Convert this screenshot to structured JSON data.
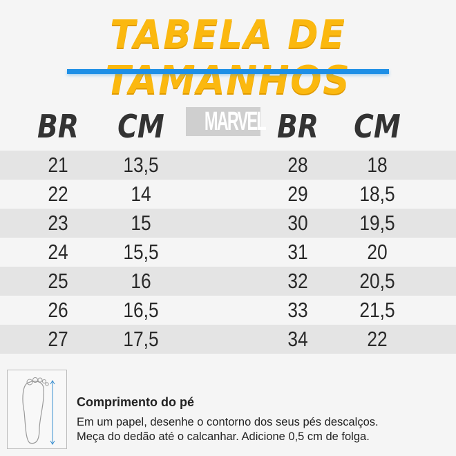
{
  "title": "TABELA DE TAMANHOS",
  "accent_color": "#fbb80f",
  "rule_color": "#1e8fe6",
  "logo": "MARVEL",
  "headers": [
    "BR",
    "CM",
    "BR",
    "CM"
  ],
  "left_rows": [
    [
      "21",
      "13,5"
    ],
    [
      "22",
      "14"
    ],
    [
      "23",
      "15"
    ],
    [
      "24",
      "15,5"
    ],
    [
      "25",
      "16"
    ],
    [
      "26",
      "16,5"
    ],
    [
      "27",
      "17,5"
    ]
  ],
  "right_rows": [
    [
      "28",
      "18"
    ],
    [
      "29",
      "18,5"
    ],
    [
      "30",
      "19,5"
    ],
    [
      "31",
      "20"
    ],
    [
      "32",
      "20,5"
    ],
    [
      "33",
      "21,5"
    ],
    [
      "34",
      "22"
    ]
  ],
  "info": {
    "icon": "foot-measure-icon",
    "heading": "Comprimento do pé",
    "line1": "Em um papel, desenhe o contorno dos seus pés descalços.",
    "line2": "Meça do dedão até o calcanhar. Adicione 0,5 cm de folga."
  }
}
